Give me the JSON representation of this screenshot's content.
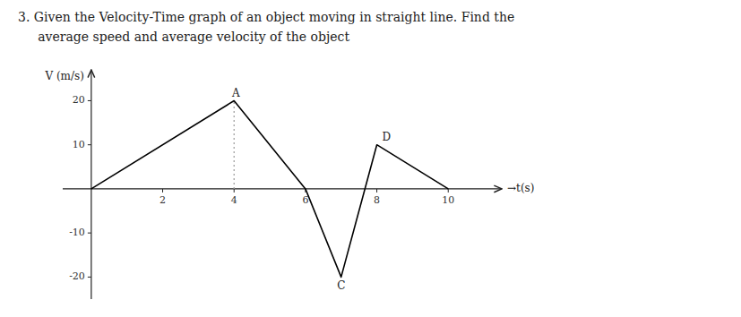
{
  "chart_data": {
    "type": "line",
    "title": "3.  Given the Velocity-Time graph of an object moving in straight line. Find the",
    "subtitle": "     average speed and average velocity of the object",
    "x": [
      0,
      4,
      6,
      7,
      8,
      10
    ],
    "values": [
      0,
      20,
      0,
      -20,
      10,
      0
    ],
    "color": "#000000",
    "xlabel": "→t(s)",
    "ylabel": "V (m/s)",
    "xlim": [
      -0.8,
      11.5
    ],
    "ylim": [
      -25,
      27
    ],
    "xticks": [
      2,
      4,
      6,
      8,
      10
    ],
    "yticks": [
      -20,
      -10,
      10,
      20
    ],
    "grid": false,
    "annotations": [
      {
        "text": "A",
        "x": 4.05,
        "y": 20.5
      },
      {
        "text": "D",
        "x": 8.1,
        "y": 10.5
      },
      {
        "text": "C",
        "x": 7.0,
        "y": -21.0
      }
    ],
    "reference_lines": [
      {
        "x": 4,
        "from": 0,
        "to": 20,
        "color": "#999999",
        "line_style": "dotted"
      }
    ]
  }
}
